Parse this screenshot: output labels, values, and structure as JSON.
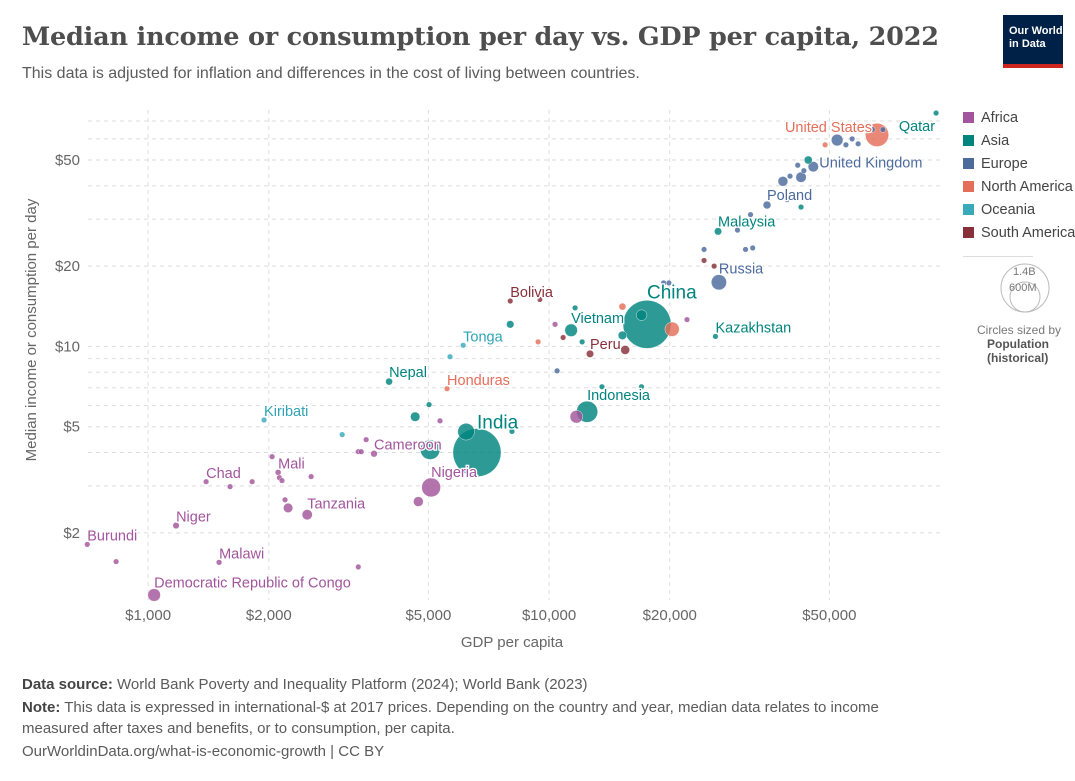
{
  "header": {
    "title": "Median income or consumption per day vs. GDP per capita, 2022",
    "subtitle": "This data is adjusted for inflation and differences in the cost of living between countries.",
    "logo_text": "Our World in Data"
  },
  "legend": {
    "items": [
      {
        "label": "Africa",
        "color": "#a2559c"
      },
      {
        "label": "Asia",
        "color": "#00847e"
      },
      {
        "label": "Europe",
        "color": "#4c6a9c"
      },
      {
        "label": "North America",
        "color": "#e56e5a"
      },
      {
        "label": "Oceania",
        "color": "#38aaba"
      },
      {
        "label": "South America",
        "color": "#883039"
      }
    ],
    "size_big": "1.4B",
    "size_small": "600M",
    "size_caption": "Circles sized by",
    "size_title": "Population",
    "size_subtitle": "(historical)"
  },
  "footer": {
    "source_label": "Data source:",
    "source": "World Bank Poverty and Inequality Platform (2024); World Bank (2023)",
    "note_label": "Note:",
    "note_line1": "This data is expressed in international-$ at 2017 prices. Depending on the country and year, median data relates to income",
    "note_line2": "measured after taxes and benefits, or to consumption, per capita.",
    "url": "OurWorldinData.org/what-is-economic-growth",
    "license": "| CC BY"
  },
  "chart_data": {
    "type": "scatter",
    "title": "Median income or consumption per day vs. GDP per capita, 2022",
    "xlabel": "GDP per capita",
    "ylabel": "Median income or consumption per day",
    "xscale": "log",
    "yscale": "log",
    "xlim": [
      708,
      94400
    ],
    "ylim": [
      1.12,
      77
    ],
    "xticks": [
      {
        "v": 1000,
        "label": "$1,000"
      },
      {
        "v": 2000,
        "label": "$2,000"
      },
      {
        "v": 5000,
        "label": "$5,000"
      },
      {
        "v": 10000,
        "label": "$10,000"
      },
      {
        "v": 20000,
        "label": "$20,000"
      },
      {
        "v": 50000,
        "label": "$50,000"
      }
    ],
    "yticks": [
      {
        "v": 2,
        "label": "$2"
      },
      {
        "v": 5,
        "label": "$5"
      },
      {
        "v": 10,
        "label": "$10"
      },
      {
        "v": 20,
        "label": "$20"
      },
      {
        "v": 50,
        "label": "$50"
      }
    ],
    "grid": true,
    "legend_position": "right",
    "size_variable": "Population (millions)",
    "points": [
      {
        "name": "Burundi",
        "c": "Africa",
        "x": 705,
        "y": 1.81,
        "p": 13
      },
      {
        "name": "",
        "c": "Africa",
        "x": 832,
        "y": 1.56,
        "p": 10
      },
      {
        "name": "Democratic Republic of Congo",
        "c": "Africa",
        "x": 1035,
        "y": 1.17,
        "p": 99
      },
      {
        "name": "Niger",
        "c": "Africa",
        "x": 1174,
        "y": 2.13,
        "p": 26
      },
      {
        "name": "Malawi",
        "c": "Africa",
        "x": 1503,
        "y": 1.55,
        "p": 20
      },
      {
        "name": "Chad",
        "c": "Africa",
        "x": 1395,
        "y": 3.11,
        "p": 18
      },
      {
        "name": "",
        "c": "Africa",
        "x": 1601,
        "y": 2.98,
        "p": 10
      },
      {
        "name": "",
        "c": "Africa",
        "x": 1817,
        "y": 3.11,
        "p": 10
      },
      {
        "name": "",
        "c": "Africa",
        "x": 2038,
        "y": 3.86,
        "p": 10
      },
      {
        "name": "Mali",
        "c": "Africa",
        "x": 2110,
        "y": 3.37,
        "p": 22
      },
      {
        "name": "",
        "c": "Africa",
        "x": 2125,
        "y": 3.22,
        "p": 10
      },
      {
        "name": "",
        "c": "Africa",
        "x": 2157,
        "y": 3.14,
        "p": 10
      },
      {
        "name": "",
        "c": "Africa",
        "x": 2550,
        "y": 3.25,
        "p": 10
      },
      {
        "name": "",
        "c": "Africa",
        "x": 2195,
        "y": 2.66,
        "p": 10
      },
      {
        "name": "",
        "c": "Africa",
        "x": 2234,
        "y": 2.48,
        "p": 55
      },
      {
        "name": "Tanzania",
        "c": "Africa",
        "x": 2493,
        "y": 2.34,
        "p": 65
      },
      {
        "name": "",
        "c": "Africa",
        "x": 3343,
        "y": 1.49,
        "p": 10
      },
      {
        "name": "",
        "c": "Africa",
        "x": 3343,
        "y": 4.03,
        "p": 10
      },
      {
        "name": "",
        "c": "Africa",
        "x": 3400,
        "y": 4.03,
        "p": 10
      },
      {
        "name": "",
        "c": "Africa",
        "x": 3497,
        "y": 4.47,
        "p": 10
      },
      {
        "name": "Cameroon",
        "c": "Africa",
        "x": 3659,
        "y": 3.96,
        "p": 28
      },
      {
        "name": "Nigeria",
        "c": "Africa",
        "x": 5079,
        "y": 2.96,
        "p": 219
      },
      {
        "name": "",
        "c": "Africa",
        "x": 4720,
        "y": 2.62,
        "p": 60
      },
      {
        "name": "",
        "c": "Africa",
        "x": 5346,
        "y": 5.26,
        "p": 10
      },
      {
        "name": "",
        "c": "Africa",
        "x": 10350,
        "y": 12.1,
        "p": 10
      },
      {
        "name": "",
        "c": "Africa",
        "x": 11700,
        "y": 5.45,
        "p": 100
      },
      {
        "name": "",
        "c": "Africa",
        "x": 22080,
        "y": 12.6,
        "p": 10
      },
      {
        "name": "Nepal",
        "c": "Asia",
        "x": 3990,
        "y": 7.38,
        "p": 30
      },
      {
        "name": "",
        "c": "Asia",
        "x": 5020,
        "y": 6.05,
        "p": 10
      },
      {
        "name": "",
        "c": "Asia",
        "x": 4634,
        "y": 5.45,
        "p": 55
      },
      {
        "name": "",
        "c": "Asia",
        "x": 5050,
        "y": 4.1,
        "p": 235
      },
      {
        "name": "India",
        "c": "Asia",
        "x": 6610,
        "y": 4.0,
        "p": 1417
      },
      {
        "name": "",
        "c": "Asia",
        "x": 6210,
        "y": 4.79,
        "p": 171
      },
      {
        "name": "",
        "c": "Asia",
        "x": 8080,
        "y": 4.8,
        "p": 10
      },
      {
        "name": "",
        "c": "Asia",
        "x": 8000,
        "y": 12.1,
        "p": 35
      },
      {
        "name": "Vietnam",
        "c": "Asia",
        "x": 11350,
        "y": 11.5,
        "p": 98
      },
      {
        "name": "",
        "c": "Asia",
        "x": 11610,
        "y": 13.95,
        "p": 7
      },
      {
        "name": "",
        "c": "Asia",
        "x": 12090,
        "y": 10.4,
        "p": 8
      },
      {
        "name": "China",
        "c": "Asia",
        "x": 17550,
        "y": 12.1,
        "p": 1412
      },
      {
        "name": "",
        "c": "Asia",
        "x": 17010,
        "y": 13.1,
        "p": 70
      },
      {
        "name": "",
        "c": "Asia",
        "x": 15240,
        "y": 11.0,
        "p": 45
      },
      {
        "name": "Indonesia",
        "c": "Asia",
        "x": 12440,
        "y": 5.69,
        "p": 275
      },
      {
        "name": "",
        "c": "Asia",
        "x": 13550,
        "y": 7.06,
        "p": 8
      },
      {
        "name": "",
        "c": "Asia",
        "x": 17000,
        "y": 7.06,
        "p": 8
      },
      {
        "name": "Malaysia",
        "c": "Asia",
        "x": 26390,
        "y": 27.0,
        "p": 34
      },
      {
        "name": "Kazakhstan",
        "c": "Asia",
        "x": 26000,
        "y": 10.9,
        "p": 8
      },
      {
        "name": "",
        "c": "Asia",
        "x": 42500,
        "y": 33.3,
        "p": 8
      },
      {
        "name": "",
        "c": "Asia",
        "x": 44300,
        "y": 50,
        "p": 40
      },
      {
        "name": "Qatar",
        "c": "Asia",
        "x": 92300,
        "y": 75,
        "p": 8
      },
      {
        "name": "Kiribati",
        "c": "Oceania",
        "x": 1946,
        "y": 5.3,
        "p": 8
      },
      {
        "name": "",
        "c": "Oceania",
        "x": 3048,
        "y": 4.67,
        "p": 8
      },
      {
        "name": "",
        "c": "Oceania",
        "x": 5662,
        "y": 9.15,
        "p": 8
      },
      {
        "name": "Tonga",
        "c": "Oceania",
        "x": 6106,
        "y": 10.1,
        "p": 8
      },
      {
        "name": "Honduras",
        "c": "North America",
        "x": 5566,
        "y": 6.94,
        "p": 10
      },
      {
        "name": "",
        "c": "North America",
        "x": 9390,
        "y": 10.4,
        "p": 10
      },
      {
        "name": "",
        "c": "North America",
        "x": 15240,
        "y": 14.1,
        "p": 30
      },
      {
        "name": "",
        "c": "North America",
        "x": 20270,
        "y": 11.6,
        "p": 127
      },
      {
        "name": "",
        "c": "North America",
        "x": 48800,
        "y": 57,
        "p": 10
      },
      {
        "name": "United States",
        "c": "North America",
        "x": 65750,
        "y": 62.1,
        "p": 333
      },
      {
        "name": "Bolivia",
        "c": "South America",
        "x": 8000,
        "y": 14.8,
        "p": 12
      },
      {
        "name": "",
        "c": "South America",
        "x": 9480,
        "y": 15,
        "p": 10
      },
      {
        "name": "",
        "c": "South America",
        "x": 10840,
        "y": 10.8,
        "p": 10
      },
      {
        "name": "Peru",
        "c": "South America",
        "x": 12650,
        "y": 9.38,
        "p": 34
      },
      {
        "name": "",
        "c": "South America",
        "x": 15480,
        "y": 9.7,
        "p": 50
      },
      {
        "name": "",
        "c": "South America",
        "x": 24350,
        "y": 21.0,
        "p": 10
      },
      {
        "name": "",
        "c": "South America",
        "x": 25800,
        "y": 20.0,
        "p": 10
      },
      {
        "name": "",
        "c": "Europe",
        "x": 10470,
        "y": 8.1,
        "p": 8
      },
      {
        "name": "",
        "c": "Europe",
        "x": 19300,
        "y": 17.3,
        "p": 8
      },
      {
        "name": "",
        "c": "Europe",
        "x": 19900,
        "y": 17.3,
        "p": 8
      },
      {
        "name": "Russia",
        "c": "Europe",
        "x": 26520,
        "y": 17.4,
        "p": 144
      },
      {
        "name": "",
        "c": "Europe",
        "x": 24350,
        "y": 23.1,
        "p": 8
      },
      {
        "name": "",
        "c": "Europe",
        "x": 30900,
        "y": 23.1,
        "p": 8
      },
      {
        "name": "",
        "c": "Europe",
        "x": 32200,
        "y": 23.4,
        "p": 8
      },
      {
        "name": "",
        "c": "Europe",
        "x": 29500,
        "y": 27.3,
        "p": 8
      },
      {
        "name": "",
        "c": "Europe",
        "x": 31800,
        "y": 31.2,
        "p": 8
      },
      {
        "name": "",
        "c": "Europe",
        "x": 33500,
        "y": 29.5,
        "p": 8
      },
      {
        "name": "Poland",
        "c": "Europe",
        "x": 34960,
        "y": 33.9,
        "p": 38
      },
      {
        "name": "",
        "c": "Europe",
        "x": 39200,
        "y": 35.5,
        "p": 8
      },
      {
        "name": "",
        "c": "Europe",
        "x": 38300,
        "y": 41.6,
        "p": 60
      },
      {
        "name": "",
        "c": "Europe",
        "x": 39900,
        "y": 43.5,
        "p": 8
      },
      {
        "name": "",
        "c": "Europe",
        "x": 42500,
        "y": 43.1,
        "p": 67
      },
      {
        "name": "",
        "c": "Europe",
        "x": 43200,
        "y": 45.6,
        "p": 10
      },
      {
        "name": "",
        "c": "Europe",
        "x": 41700,
        "y": 47.8,
        "p": 8
      },
      {
        "name": "United Kingdom",
        "c": "Europe",
        "x": 45600,
        "y": 47.2,
        "p": 67
      },
      {
        "name": "",
        "c": "Europe",
        "x": 52300,
        "y": 59.4,
        "p": 84
      },
      {
        "name": "",
        "c": "Europe",
        "x": 55000,
        "y": 57,
        "p": 10
      },
      {
        "name": "",
        "c": "Europe",
        "x": 57000,
        "y": 60,
        "p": 10
      },
      {
        "name": "",
        "c": "Europe",
        "x": 59000,
        "y": 57.5,
        "p": 10
      },
      {
        "name": "",
        "c": "Europe",
        "x": 64000,
        "y": 65,
        "p": 10
      },
      {
        "name": "",
        "c": "Europe",
        "x": 68000,
        "y": 65,
        "p": 10
      }
    ]
  }
}
